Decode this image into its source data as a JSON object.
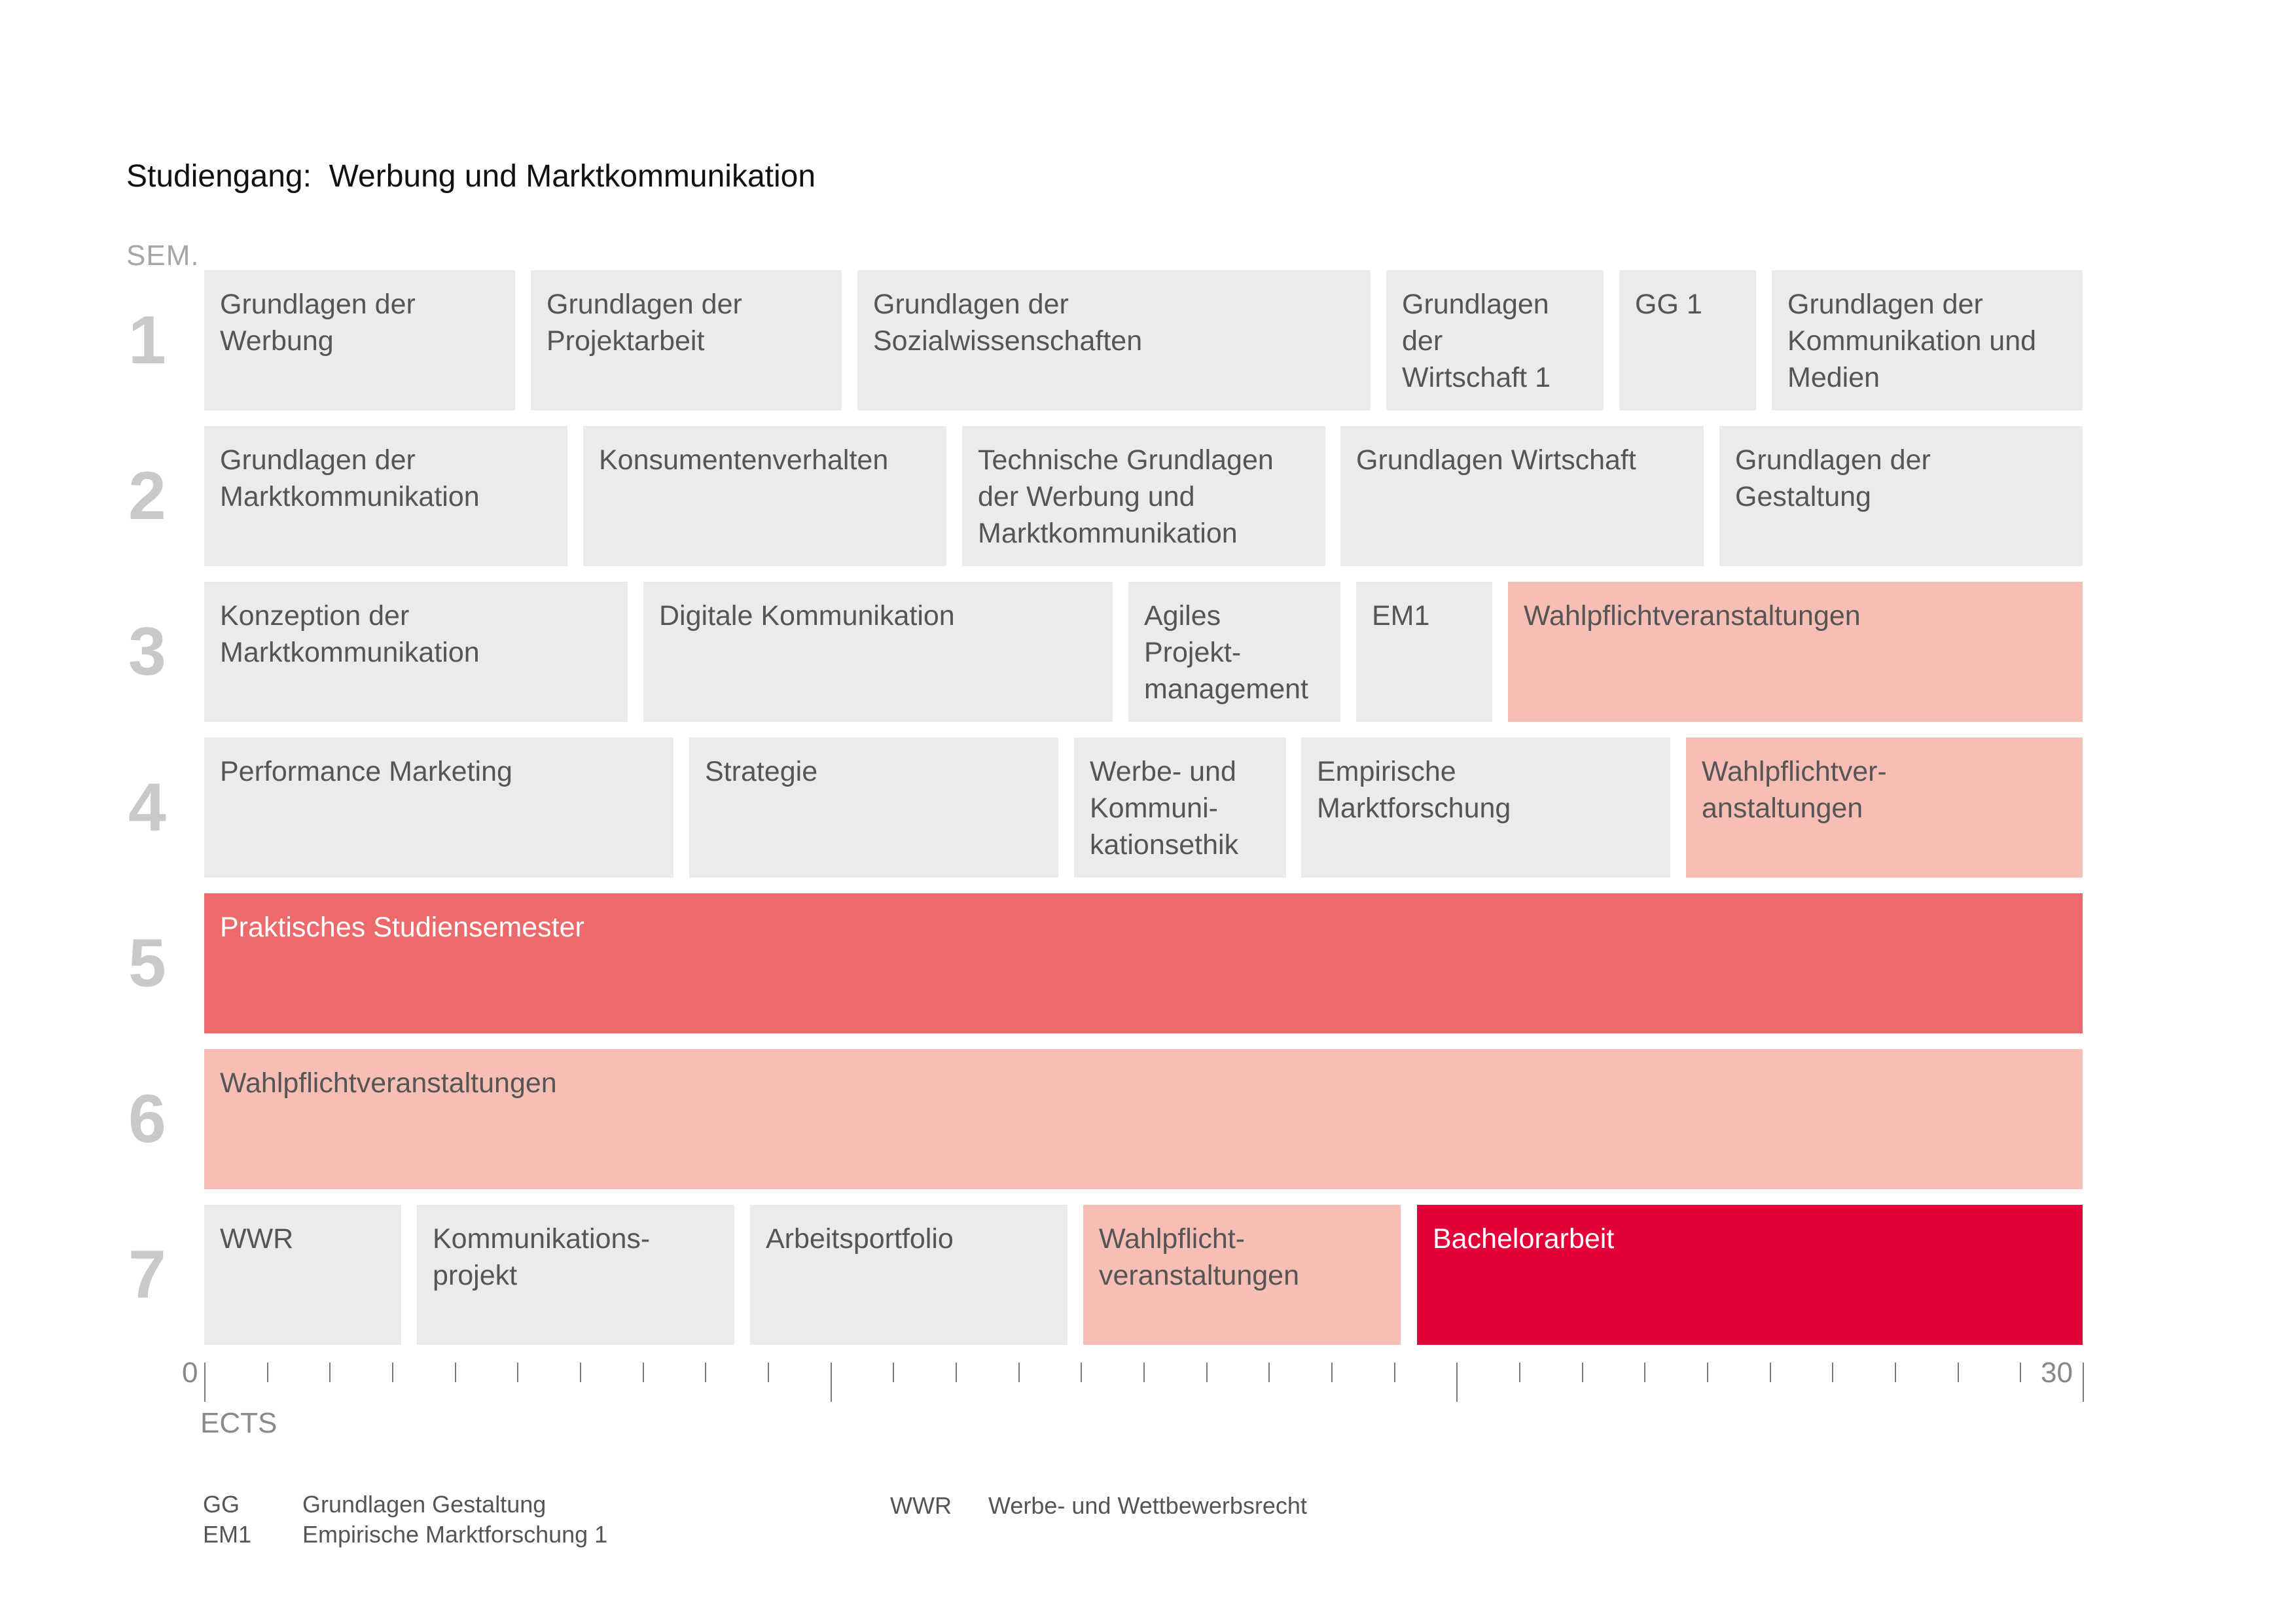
{
  "title": "Studiengang:  Werbung und Marktkommunikation",
  "semester_label": "SEM.",
  "axis": {
    "label": "ECTS",
    "min_label": "0",
    "max_label": "30",
    "max_ects": 30
  },
  "colors": {
    "grey": "#ebebeb",
    "wahlpflicht": "#f7beb5",
    "praxis": "#ec6a6b",
    "bachelor": "#e40038",
    "semester_number": "#c9c9c9"
  },
  "semesters": [
    {
      "number": "1",
      "modules": [
        {
          "label": "Grundlagen der\nWerbung",
          "ects": 5,
          "type": "grey"
        },
        {
          "label": "Grundlagen der\nProjektarbeit",
          "ects": 5,
          "type": "grey"
        },
        {
          "label": "Grundlagen der\nSozialwissenschaften",
          "ects": 8.25,
          "type": "grey"
        },
        {
          "label": "Grundlagen\nder\nWirtschaft 1",
          "ects": 3.5,
          "type": "grey"
        },
        {
          "label": "GG 1",
          "ects": 2.2,
          "type": "grey"
        },
        {
          "label": "Grundlagen der\nKommunikation und\nMedien",
          "ects": 5,
          "type": "grey"
        }
      ]
    },
    {
      "number": "2",
      "modules": [
        {
          "label": "Grundlagen der\nMarktkommunikation",
          "ects": 6,
          "type": "grey"
        },
        {
          "label": "Konsumentenverhalten",
          "ects": 6,
          "type": "grey"
        },
        {
          "label": "Technische Grundlagen\nder Werbung und\nMarktkommunikation",
          "ects": 6,
          "type": "grey"
        },
        {
          "label": "Grundlagen Wirtschaft",
          "ects": 6,
          "type": "grey"
        },
        {
          "label": "Grundlagen der\nGestaltung",
          "ects": 6,
          "type": "grey"
        }
      ]
    },
    {
      "number": "3",
      "modules": [
        {
          "label": "Konzeption der\nMarktkommunikation",
          "ects": 7,
          "type": "grey"
        },
        {
          "label": "Digitale Kommunikation",
          "ects": 7.75,
          "type": "grey"
        },
        {
          "label": "Agiles\nProjekt-\nmanagement",
          "ects": 3.5,
          "type": "grey"
        },
        {
          "label": "EM1",
          "ects": 2.25,
          "type": "grey"
        },
        {
          "label": "Wahlpflichtveranstaltungen",
          "ects": 9.5,
          "type": "wahlpflicht"
        }
      ]
    },
    {
      "number": "4",
      "modules": [
        {
          "label": "Performance Marketing",
          "ects": 7.75,
          "type": "grey"
        },
        {
          "label": "Strategie",
          "ects": 6.1,
          "type": "grey"
        },
        {
          "label": "Werbe- und\nKommuni-\nkationsethik",
          "ects": 3.5,
          "type": "grey"
        },
        {
          "label": "Empirische\nMarktforschung",
          "ects": 6.1,
          "type": "grey"
        },
        {
          "label": "Wahlpflichtver-\nanstaltungen",
          "ects": 6.55,
          "type": "wahlpflicht"
        }
      ]
    },
    {
      "number": "5",
      "modules": [
        {
          "label": "Praktisches Studiensemester",
          "ects": 30,
          "type": "praxis"
        }
      ]
    },
    {
      "number": "6",
      "modules": [
        {
          "label": "Wahlpflichtveranstaltungen",
          "ects": 30,
          "type": "wahlpflicht"
        }
      ]
    },
    {
      "number": "7",
      "modules": [
        {
          "label": "WWR",
          "ects": 3.25,
          "type": "grey"
        },
        {
          "label": "Kommunikations-\nprojekt",
          "ects": 5.25,
          "type": "grey"
        },
        {
          "label": "Arbeitsportfolio",
          "ects": 5.25,
          "type": "grey"
        },
        {
          "label": "Wahlpflicht-\nveranstaltungen",
          "ects": 5.25,
          "type": "wahlpflicht"
        },
        {
          "label": "Bachelorarbeit",
          "ects": 11,
          "type": "bachelor"
        }
      ]
    }
  ],
  "legend": [
    {
      "abbr": "GG",
      "text": "Grundlagen Gestaltung"
    },
    {
      "abbr": "EM1",
      "text": "Empirische Marktforschung 1"
    },
    {
      "abbr": "WWR",
      "text": "Werbe- und Wettbewerbsrecht"
    }
  ]
}
